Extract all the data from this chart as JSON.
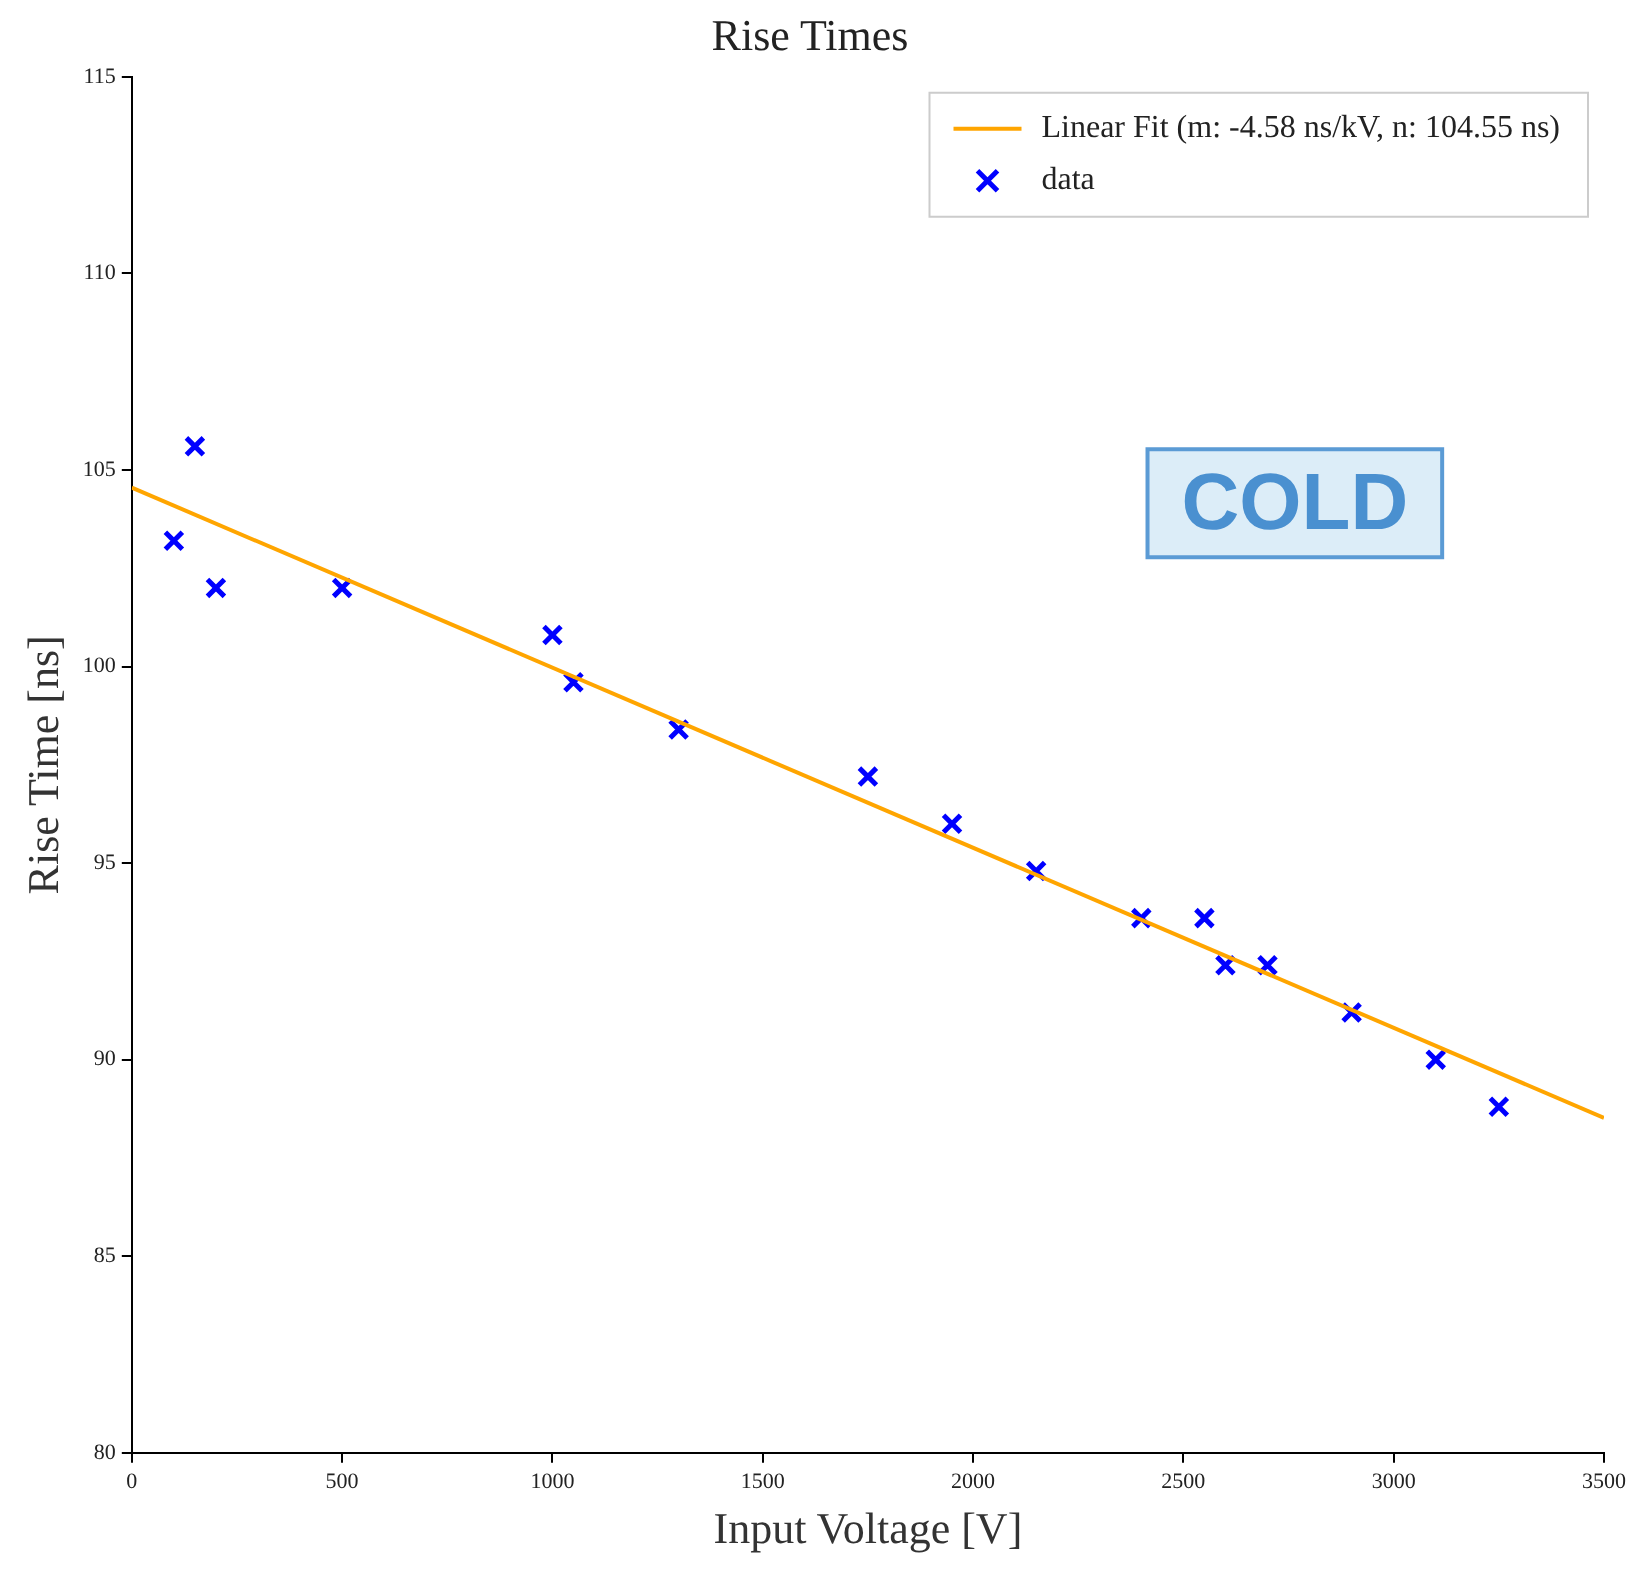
{
  "chart_data": {
    "type": "scatter",
    "title": "Rise Times",
    "xlabel": "Input Voltage [V]",
    "ylabel": "Rise Time [ns]",
    "annotations": [
      "COLD"
    ],
    "xlim": [
      0,
      3500
    ],
    "xticks": [
      0,
      500,
      1000,
      1500,
      2000,
      2500,
      3000,
      3500
    ],
    "ylim": [
      80,
      115
    ],
    "yticks": [
      80,
      85,
      90,
      95,
      100,
      105,
      110,
      115
    ],
    "grid": false,
    "legend": "top right",
    "series": [
      {
        "name": "Linear Fit (m: -4.58 ns/kV, n: 104.55 ns)",
        "type": "line",
        "color": "#ffa500",
        "line_style": "solid",
        "x": [
          0,
          3500
        ],
        "values": [
          104.55,
          88.52
        ]
      },
      {
        "name": "data",
        "type": "scatter",
        "color": "#0000ff",
        "marker": "cross",
        "x": [
          100,
          150,
          200,
          500,
          1000,
          1050,
          1300,
          1750,
          1950,
          2150,
          2400,
          2550,
          2600,
          2700,
          2900,
          3100,
          3250
        ],
        "values": [
          103.2,
          105.6,
          102.0,
          102.0,
          100.8,
          99.6,
          98.4,
          97.2,
          96.0,
          94.8,
          93.6,
          93.6,
          92.4,
          92.4,
          91.2,
          90.0,
          88.8
        ]
      }
    ]
  }
}
